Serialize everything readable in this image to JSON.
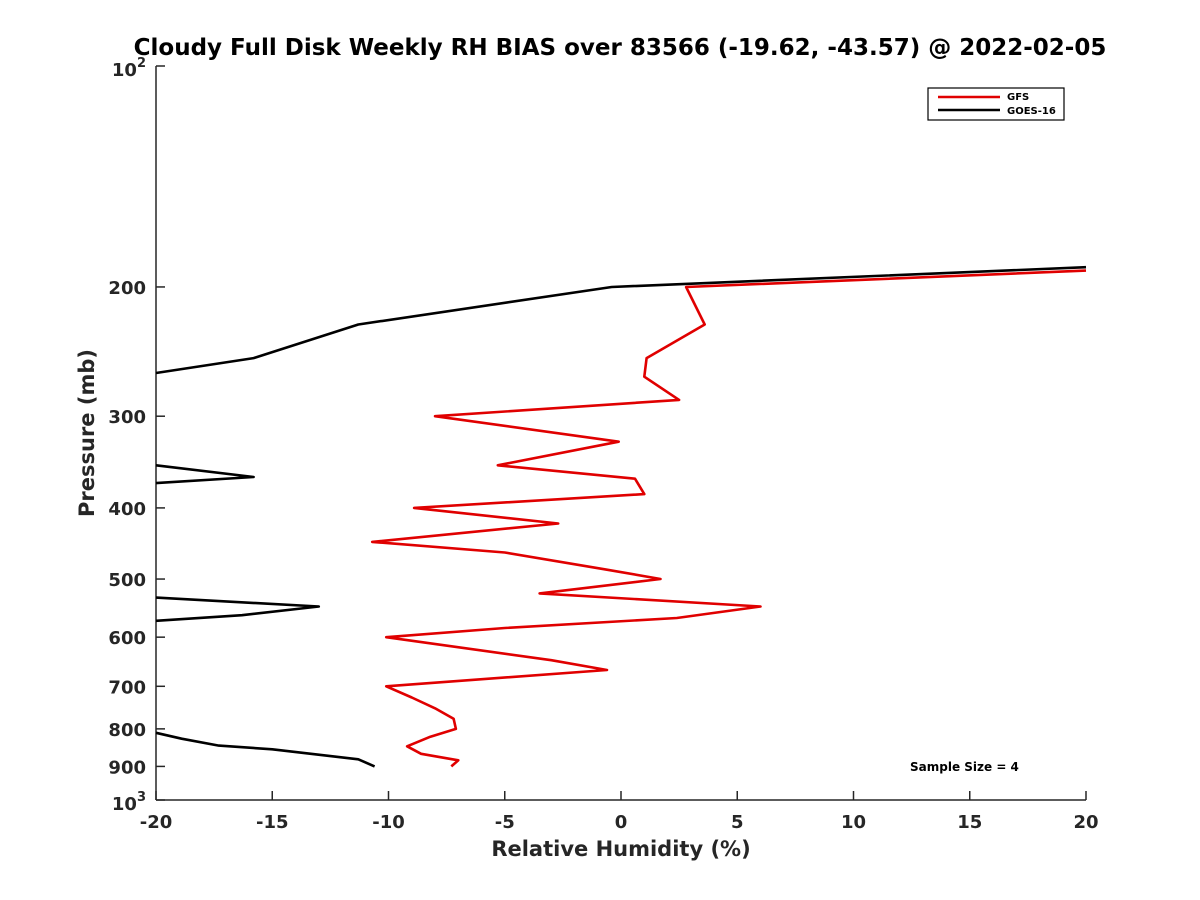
{
  "chart_data": {
    "type": "line",
    "title": "Cloudy Full Disk Weekly RH BIAS over 83566 (-19.62, -43.57) @ 2022-02-05",
    "xlabel": "Relative Humidity (%)",
    "ylabel": "Pressure (mb)",
    "xlim": [
      -20,
      20
    ],
    "ylim": [
      100,
      1000
    ],
    "y_scale": "log",
    "y_reversed": true,
    "x_ticks": [
      "-20",
      "-15",
      "-10",
      "-5",
      "0",
      "5",
      "10",
      "15",
      "20"
    ],
    "y_ticks": [
      {
        "value": 100,
        "base": "10",
        "exp": "2",
        "label": ""
      },
      {
        "value": 200,
        "label": "200"
      },
      {
        "value": 300,
        "label": "300"
      },
      {
        "value": 400,
        "label": "400"
      },
      {
        "value": 500,
        "label": "500"
      },
      {
        "value": 600,
        "label": "600"
      },
      {
        "value": 700,
        "label": "700"
      },
      {
        "value": 800,
        "label": "800"
      },
      {
        "value": 900,
        "label": "900"
      },
      {
        "value": 1000,
        "base": "10",
        "exp": "3",
        "label": ""
      }
    ],
    "grid": false,
    "legend_position": "top-right",
    "annotation": "Sample Size = 4",
    "series": [
      {
        "name": "GFS",
        "color": "#e00000",
        "points": [
          [
            20,
            190
          ],
          [
            2.8,
            200
          ],
          [
            3.6,
            225
          ],
          [
            1.1,
            250
          ],
          [
            1.0,
            265
          ],
          [
            2.5,
            285
          ],
          [
            -8.0,
            300
          ],
          [
            -0.1,
            325
          ],
          [
            -5.3,
            350
          ],
          [
            0.6,
            365
          ],
          [
            1.0,
            383
          ],
          [
            -8.9,
            400
          ],
          [
            -2.7,
            420
          ],
          [
            -10.7,
            445
          ],
          [
            -5.0,
            460
          ],
          [
            -0.7,
            485
          ],
          [
            1.7,
            500
          ],
          [
            -3.5,
            523
          ],
          [
            6.0,
            545
          ],
          [
            2.4,
            565
          ],
          [
            -5.0,
            583
          ],
          [
            -10.1,
            600
          ],
          [
            -3.0,
            645
          ],
          [
            -0.6,
            665
          ],
          [
            -10.1,
            700
          ],
          [
            -9.0,
            725
          ],
          [
            -8.0,
            750
          ],
          [
            -7.2,
            775
          ],
          [
            -7.1,
            800
          ],
          [
            -8.2,
            820
          ],
          [
            -9.2,
            845
          ],
          [
            -8.6,
            865
          ],
          [
            -7.0,
            883
          ],
          [
            -7.3,
            900
          ]
        ]
      },
      {
        "name": "GOES-16",
        "color": "#000000",
        "points": [
          [
            20,
            188
          ],
          [
            -0.4,
            200
          ],
          [
            -11.3,
            225
          ],
          [
            -15.8,
            250
          ],
          [
            -20,
            262
          ],
          null,
          [
            -20,
            350
          ],
          [
            -15.8,
            363
          ],
          [
            -20,
            370
          ],
          null,
          [
            -20,
            530
          ],
          [
            -13.0,
            545
          ],
          [
            -16.3,
            560
          ],
          [
            -20,
            570
          ],
          null,
          [
            -20,
            810
          ],
          [
            -18.9,
            825
          ],
          [
            -17.3,
            843
          ],
          [
            -15.0,
            853
          ],
          [
            -11.3,
            880
          ],
          [
            -10.6,
            900
          ]
        ]
      }
    ]
  }
}
